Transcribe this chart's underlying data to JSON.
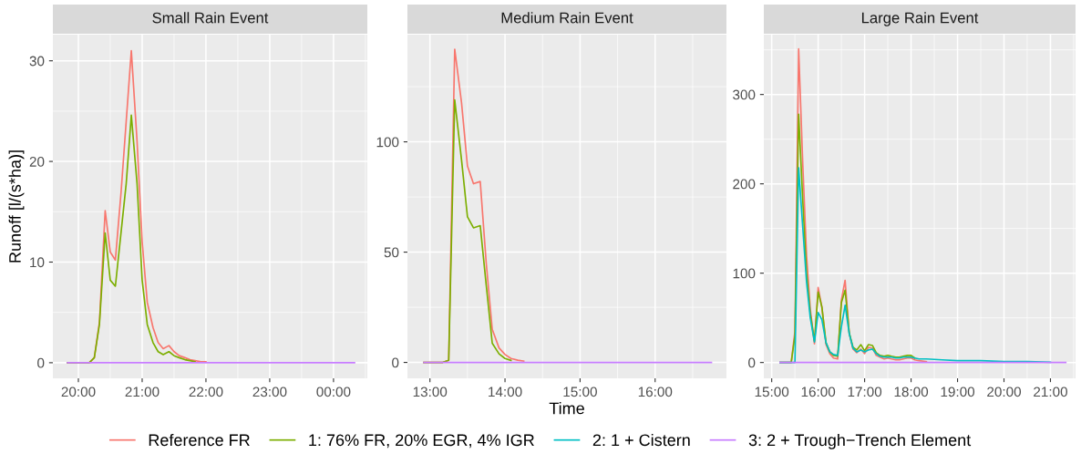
{
  "chart_data": [
    {
      "type": "line",
      "title": "Small Rain Event",
      "ylabel": "Runoff [l/(s*ha)]",
      "xlim": [
        19.6,
        24.53
      ],
      "ylim": [
        -1.55,
        32.6
      ],
      "xticks": [
        {
          "value": 20,
          "label": "20:00"
        },
        {
          "value": 21,
          "label": "21:00"
        },
        {
          "value": 22,
          "label": "22:00"
        },
        {
          "value": 23,
          "label": "23:00"
        },
        {
          "value": 24,
          "label": "00:00"
        }
      ],
      "yticks": [
        0,
        10,
        20,
        30
      ],
      "grid": true,
      "legend": "bottom",
      "series": [
        {
          "name": "Reference FR",
          "color": "#f8766d",
          "x": [
            19.83,
            20.17,
            20.25,
            20.33,
            20.42,
            20.5,
            20.58,
            20.67,
            20.75,
            20.83,
            20.92,
            21.0,
            21.08,
            21.17,
            21.25,
            21.33,
            21.42,
            21.5,
            21.58,
            21.67,
            21.75,
            21.83,
            21.92,
            22.0
          ],
          "values": [
            0,
            0,
            0.5,
            4,
            15.1,
            11,
            10.2,
            17,
            24,
            31,
            22,
            12,
            6,
            3.5,
            2,
            1.4,
            1.7,
            1.1,
            0.7,
            0.5,
            0.3,
            0.2,
            0.1,
            0.1
          ]
        },
        {
          "name": "1: 76% FR, 20% EGR, 4% IGR",
          "color": "#7cae00",
          "x": [
            19.83,
            20.17,
            20.25,
            20.33,
            20.42,
            20.5,
            20.58,
            20.67,
            20.75,
            20.83,
            20.92,
            21.0,
            21.08,
            21.17,
            21.25,
            21.33,
            21.42,
            21.5,
            21.58,
            21.67,
            21.75,
            21.83
          ],
          "values": [
            0,
            0,
            0.5,
            3.8,
            12.9,
            8.2,
            7.6,
            13,
            17.8,
            24.6,
            17.8,
            8.2,
            3.8,
            2.0,
            1.1,
            0.8,
            1.1,
            0.7,
            0.5,
            0.3,
            0.2,
            0.1
          ]
        },
        {
          "name": "3: 2 + Trough−Trench Element",
          "color": "#c77cff",
          "x": [
            19.83,
            24.33
          ],
          "values": [
            0,
            0
          ]
        }
      ]
    },
    {
      "type": "line",
      "title": "Medium Rain Event",
      "xlabel": "Time",
      "xlim": [
        12.7,
        16.95
      ],
      "ylim": [
        -7.2,
        148.6
      ],
      "xticks": [
        {
          "value": 13,
          "label": "13:00"
        },
        {
          "value": 14,
          "label": "14:00"
        },
        {
          "value": 15,
          "label": "15:00"
        },
        {
          "value": 16,
          "label": "16:00"
        }
      ],
      "yticks": [
        0,
        50,
        100
      ],
      "grid": true,
      "legend": "bottom",
      "series": [
        {
          "name": "Reference FR",
          "color": "#f8766d",
          "x": [
            12.92,
            13.17,
            13.25,
            13.33,
            13.42,
            13.5,
            13.58,
            13.67,
            13.75,
            13.83,
            13.92,
            14.0,
            14.08,
            14.17,
            14.25
          ],
          "values": [
            0,
            0,
            1,
            142,
            118,
            89,
            81,
            82,
            45,
            15,
            6.6,
            3.6,
            1.8,
            1.0,
            0.6
          ]
        },
        {
          "name": "1: 76% FR, 20% EGR, 4% IGR",
          "color": "#7cae00",
          "x": [
            12.92,
            13.17,
            13.25,
            13.33,
            13.42,
            13.5,
            13.58,
            13.67,
            13.75,
            13.83,
            13.92,
            14.0,
            14.08
          ],
          "values": [
            0,
            0,
            1,
            119,
            92,
            66,
            61,
            62,
            35,
            8.7,
            3.9,
            1.8,
            0.9
          ]
        },
        {
          "name": "3: 2 + Trough−Trench Element",
          "color": "#c77cff",
          "x": [
            12.92,
            16.75
          ],
          "values": [
            0,
            0
          ]
        }
      ]
    },
    {
      "type": "line",
      "title": "Large Rain Event",
      "xlim": [
        14.83,
        21.54
      ],
      "ylim": [
        -17.7,
        367
      ],
      "xticks": [
        {
          "value": 15,
          "label": "15:00"
        },
        {
          "value": 16,
          "label": "16:00"
        },
        {
          "value": 17,
          "label": "17:00"
        },
        {
          "value": 18,
          "label": "18:00"
        },
        {
          "value": 19,
          "label": "19:00"
        },
        {
          "value": 20,
          "label": "20:00"
        },
        {
          "value": 21,
          "label": "21:00"
        }
      ],
      "yticks": [
        0,
        100,
        200,
        300
      ],
      "grid": true,
      "legend": "bottom",
      "series": [
        {
          "name": "Reference FR",
          "color": "#f8766d",
          "x": [
            15.18,
            15.42,
            15.5,
            15.58,
            15.67,
            15.75,
            15.83,
            15.92,
            16.0,
            16.08,
            16.17,
            16.25,
            16.33,
            16.42,
            16.5,
            16.58,
            16.67,
            16.75,
            16.83,
            16.92,
            17.0,
            17.08,
            17.17,
            17.25,
            17.33,
            17.42,
            17.5,
            17.58,
            17.67,
            17.75,
            17.83,
            17.92,
            18.0,
            18.08,
            18.17,
            18.33
          ],
          "values": [
            0,
            0,
            35,
            351,
            220,
            120,
            60,
            21,
            84,
            62,
            20,
            10,
            5,
            4,
            70,
            92,
            32,
            15,
            11,
            15,
            10,
            17,
            16,
            8,
            6,
            4,
            5,
            4,
            3,
            3,
            4,
            5,
            5,
            3,
            2,
            1
          ]
        },
        {
          "name": "1: 76% FR, 20% EGR, 4% IGR",
          "color": "#7cae00",
          "x": [
            15.18,
            15.42,
            15.5,
            15.58,
            15.67,
            15.75,
            15.83,
            15.92,
            16.0,
            16.08,
            16.17,
            16.25,
            16.33,
            16.42,
            16.5,
            16.58,
            16.67,
            16.75,
            16.83,
            16.92,
            17.0,
            17.08,
            17.17,
            17.25,
            17.33,
            17.42,
            17.5,
            17.58,
            17.67,
            17.75,
            17.83,
            17.92,
            18.0,
            18.08
          ],
          "values": [
            0,
            0,
            30,
            278,
            180,
            100,
            55,
            24,
            79,
            62,
            22,
            12,
            8,
            7,
            67,
            81,
            33,
            17,
            14,
            20,
            13,
            20,
            19,
            11,
            8,
            7,
            8,
            7,
            6,
            6,
            7,
            8,
            8,
            5
          ]
        },
        {
          "name": "2: 1 + Cistern",
          "color": "#00bfc4",
          "x": [
            15.18,
            15.42,
            15.5,
            15.58,
            15.67,
            15.75,
            15.83,
            15.92,
            16.0,
            16.08,
            16.17,
            16.25,
            16.33,
            16.42,
            16.5,
            16.58,
            16.67,
            16.75,
            16.83,
            16.92,
            17.0,
            17.08,
            17.17,
            17.25,
            17.33,
            17.42,
            17.5,
            17.58,
            17.67,
            17.75,
            17.83,
            17.92,
            18.0,
            18.08,
            18.17,
            18.33,
            18.67,
            19.0,
            19.5,
            20.0,
            20.5,
            21.0
          ],
          "values": [
            0,
            0,
            0,
            218,
            150,
            90,
            50,
            23,
            56,
            48,
            22,
            12,
            9,
            8,
            40,
            64,
            32,
            16,
            12,
            14,
            12,
            14,
            15,
            10,
            7,
            6,
            6,
            6,
            5,
            5,
            6,
            6,
            6,
            5,
            4,
            4,
            3,
            2,
            2,
            1,
            1,
            0.3
          ]
        },
        {
          "name": "3: 2 + Trough−Trench Element",
          "color": "#c77cff",
          "x": [
            15.18,
            21.33
          ],
          "values": [
            0,
            0
          ]
        }
      ]
    }
  ]
}
